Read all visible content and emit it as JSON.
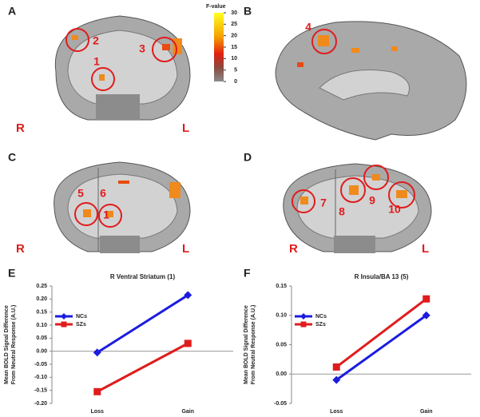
{
  "panel_labels": [
    "A",
    "B",
    "C",
    "D",
    "E",
    "F"
  ],
  "image_panels": [
    {
      "annotations": [
        "2",
        "3",
        "1"
      ],
      "left": "R",
      "right": "L"
    },
    {
      "annotations": [
        "4"
      ]
    },
    {
      "annotations": [
        "5",
        "6",
        "1"
      ],
      "left": "R",
      "right": "L"
    },
    {
      "annotations": [
        "7",
        "8",
        "9",
        "10"
      ],
      "left": "R",
      "right": "L"
    }
  ],
  "colorbar": {
    "title": "F-value",
    "range": [
      0,
      30
    ],
    "ticks": [
      30,
      25,
      20,
      15,
      10,
      5,
      0
    ]
  },
  "chart_data": [
    {
      "type": "line",
      "title": "R Ventral Striatum (1)",
      "ylabel": [
        "Mean BOLD Signal Difference",
        "From Neutral Response (A.U.)"
      ],
      "categories": [
        "Loss",
        "Gain"
      ],
      "series": [
        {
          "name": "NCs",
          "color": "#1c1ce0",
          "marker": "diamond",
          "values": [
            -0.005,
            0.215
          ]
        },
        {
          "name": "SZs",
          "color": "#e01c1c",
          "marker": "square",
          "values": [
            -0.155,
            0.03
          ]
        }
      ],
      "ylim": [
        -0.2,
        0.25
      ],
      "yticks": [
        {
          "value": -0.2,
          "label": "-0.20"
        },
        -0.15,
        {
          "value": -0.1,
          "label": "-0.10"
        },
        -0.05,
        {
          "value": 0,
          "label": "0.00"
        },
        0.05,
        {
          "value": 0.1,
          "label": "0.10"
        },
        0.15,
        {
          "value": 0.2,
          "label": "0.20"
        },
        0.25
      ],
      "legend": "upper left"
    },
    {
      "type": "line",
      "title": "R Insula/BA 13 (5)",
      "ylabel": [
        "Mean BOLD Signal Difference",
        "From Neutral Response (A.U.)"
      ],
      "categories": [
        "Loss",
        "Gain"
      ],
      "series": [
        {
          "name": "NCs",
          "color": "#1c1ce0",
          "marker": "diamond",
          "values": [
            -0.01,
            0.1
          ]
        },
        {
          "name": "SZs",
          "color": "#e01c1c",
          "marker": "square",
          "values": [
            0.012,
            0.128
          ]
        }
      ],
      "ylim": [
        -0.05,
        0.15
      ],
      "yticks": [
        -0.05,
        {
          "value": 0,
          "label": "0.00"
        },
        0.05,
        {
          "value": 0.1,
          "label": "0.10"
        },
        0.15
      ],
      "legend": "upper left"
    }
  ]
}
